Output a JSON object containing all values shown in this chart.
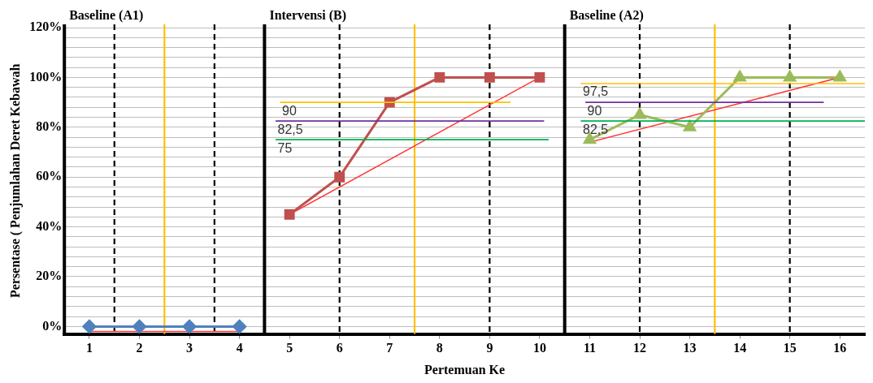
{
  "chart_data": {
    "type": "line",
    "xlabel": "Pertemuan Ke",
    "ylabel": "Persentase ( Penjumlahan Deret Kebawah",
    "xlim": [
      0.5,
      16.5
    ],
    "xticks": [
      1,
      2,
      3,
      4,
      5,
      6,
      7,
      8,
      9,
      10,
      11,
      12,
      13,
      14,
      15,
      16
    ],
    "ylim": [
      -3,
      120
    ],
    "yticks": [
      {
        "value": 0,
        "label": "0%"
      },
      {
        "value": 4,
        "label": null
      },
      {
        "value": 8,
        "label": null
      },
      {
        "value": 12,
        "label": null
      },
      {
        "value": 16,
        "label": null
      },
      {
        "value": 20,
        "label": "20%"
      },
      {
        "value": 24,
        "label": null
      },
      {
        "value": 28,
        "label": null
      },
      {
        "value": 32,
        "label": null
      },
      {
        "value": 36,
        "label": null
      },
      {
        "value": 40,
        "label": "40%"
      },
      {
        "value": 44,
        "label": null
      },
      {
        "value": 48,
        "label": null
      },
      {
        "value": 52,
        "label": null
      },
      {
        "value": 56,
        "label": null
      },
      {
        "value": 60,
        "label": "60%"
      },
      {
        "value": 64,
        "label": null
      },
      {
        "value": 68,
        "label": null
      },
      {
        "value": 72,
        "label": null
      },
      {
        "value": 76,
        "label": null
      },
      {
        "value": 80,
        "label": "80%"
      },
      {
        "value": 84,
        "label": null
      },
      {
        "value": 88,
        "label": null
      },
      {
        "value": 92,
        "label": null
      },
      {
        "value": 96,
        "label": null
      },
      {
        "value": 100,
        "label": "100%"
      },
      {
        "value": 104,
        "label": null
      },
      {
        "value": 108,
        "label": null
      },
      {
        "value": 112,
        "label": null
      },
      {
        "value": 116,
        "label": null
      },
      {
        "value": 120,
        "label": "120%"
      }
    ],
    "grid": "y",
    "legend": false,
    "series": [
      {
        "color": "#ffc000",
        "x": [
          4.82,
          9.41
        ],
        "values": [
          90,
          90
        ],
        "marker": "none"
      },
      {
        "color": "#7030a0",
        "x": [
          4.73,
          10.08
        ],
        "values": [
          82.5,
          82.5
        ],
        "marker": "none"
      },
      {
        "color": "#00b050",
        "x": [
          4.73,
          10.17
        ],
        "values": [
          75,
          75
        ],
        "marker": "none"
      },
      {
        "color": "#ffc000",
        "x": [
          10.83,
          16.5
        ],
        "values": [
          97.5,
          97.5
        ],
        "marker": "none"
      },
      {
        "color": "#7030a0",
        "x": [
          10.92,
          15.67
        ],
        "values": [
          90,
          90
        ],
        "marker": "none"
      },
      {
        "color": "#00b050",
        "x": [
          10.83,
          16.5
        ],
        "values": [
          82.5,
          82.5
        ],
        "marker": "none"
      },
      {
        "color": "#4f81bd",
        "x": [
          1,
          2,
          3,
          4
        ],
        "values": [
          0,
          0,
          0,
          0
        ],
        "marker": "diamond"
      },
      {
        "color": "#c0504d",
        "x": [
          5,
          6,
          7,
          8,
          9,
          10
        ],
        "values": [
          45,
          60,
          90,
          100,
          100,
          100
        ],
        "marker": "square"
      },
      {
        "color": "#9bbb59",
        "x": [
          11,
          12,
          13,
          14,
          15,
          16
        ],
        "values": [
          75,
          85,
          80,
          100,
          100,
          100
        ],
        "marker": "triangle"
      },
      {
        "color": "#ff3b3b",
        "x": [
          1,
          4
        ],
        "values": [
          -2,
          -2
        ],
        "marker": "none"
      },
      {
        "color": "#ff3b3b",
        "x": [
          5,
          10
        ],
        "values": [
          45,
          100
        ],
        "marker": "none"
      },
      {
        "color": "#ff3b3b",
        "x": [
          11,
          16
        ],
        "values": [
          74,
          100
        ],
        "marker": "none"
      }
    ],
    "ref_lines": [
      {
        "axis": "x",
        "value": 0.5,
        "label": "Baseline (A1)",
        "color": "#000000",
        "line_style": "solid"
      },
      {
        "axis": "x",
        "value": 1.5,
        "color": "#000000",
        "line_style": "dashed"
      },
      {
        "axis": "x",
        "value": 2.5,
        "color": "#ffc000",
        "line_style": "solid"
      },
      {
        "axis": "x",
        "value": 3.5,
        "color": "#000000",
        "line_style": "dashed"
      },
      {
        "axis": "x",
        "value": 4.5,
        "label": "Intervensi (B)",
        "color": "#000000",
        "line_style": "solid"
      },
      {
        "axis": "x",
        "value": 6,
        "color": "#000000",
        "line_style": "dashed"
      },
      {
        "axis": "x",
        "value": 7.5,
        "color": "#ffc000",
        "line_style": "solid"
      },
      {
        "axis": "x",
        "value": 9,
        "color": "#000000",
        "line_style": "dashed"
      },
      {
        "axis": "x",
        "value": 10.5,
        "label": "Baseline (A2)",
        "color": "#000000",
        "line_style": "solid"
      },
      {
        "axis": "x",
        "value": 12,
        "color": "#000000",
        "line_style": "dashed"
      },
      {
        "axis": "x",
        "value": 13.5,
        "color": "#ffc000",
        "line_style": "solid"
      },
      {
        "axis": "x",
        "value": 15,
        "color": "#000000",
        "line_style": "dashed"
      }
    ],
    "annotations": [
      {
        "text": "90",
        "x": 4.82,
        "y": 90
      },
      {
        "text": "82,5",
        "x": 4.73,
        "y": 82.5
      },
      {
        "text": "75",
        "x": 4.73,
        "y": 75
      },
      {
        "text": "97,5",
        "x": 10.83,
        "y": 97.5
      },
      {
        "text": "90",
        "x": 10.92,
        "y": 90
      },
      {
        "text": "82,5",
        "x": 10.83,
        "y": 82.5
      }
    ]
  }
}
